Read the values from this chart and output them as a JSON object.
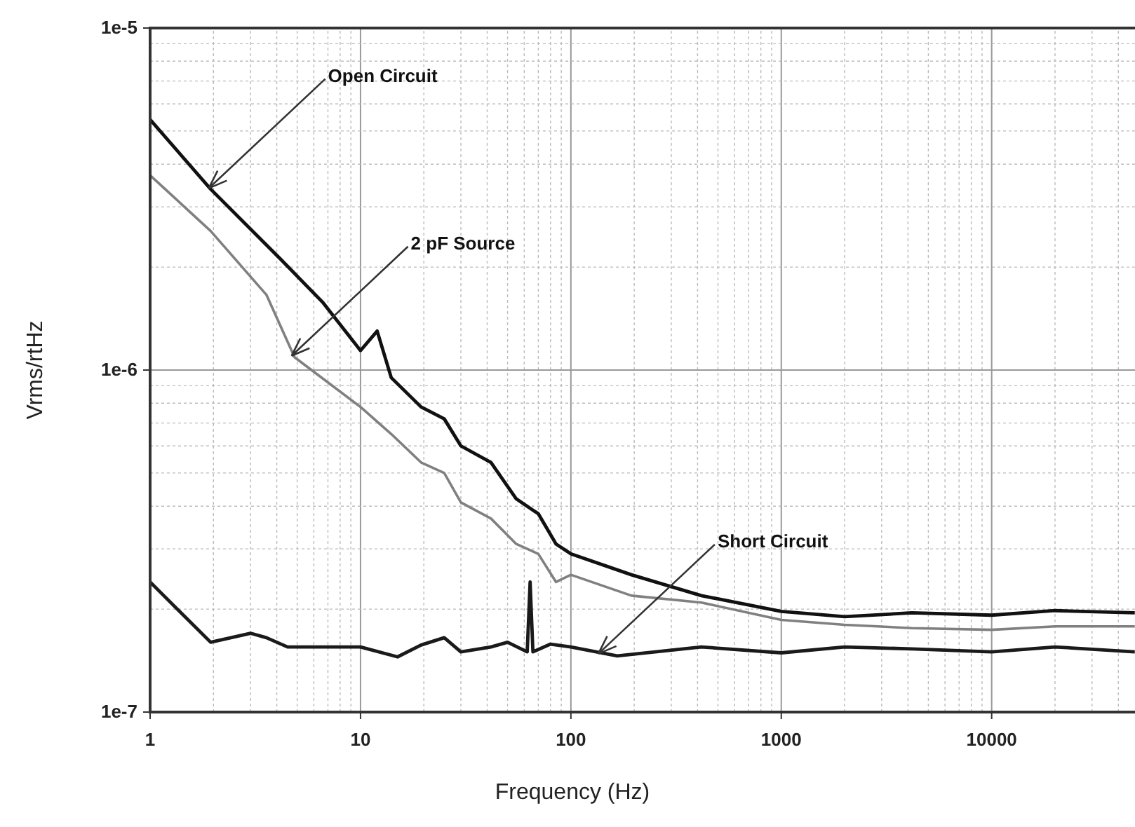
{
  "chart_data": {
    "type": "line",
    "xlabel": "Frequency (Hz)",
    "ylabel": "Vrms/rtHz",
    "log": "xy",
    "grid": true,
    "line_style": "solid",
    "xlim": [
      1,
      48000
    ],
    "xticks": [
      1,
      10,
      100,
      1000,
      10000
    ],
    "ylim": [
      1e-07,
      1e-05
    ],
    "yticks": [
      {
        "value": 1e-07,
        "label": "1e-7"
      },
      {
        "value": 1e-06,
        "label": "1e-6"
      },
      {
        "value": 1e-05,
        "label": "1e-5"
      }
    ],
    "series": [
      {
        "color": "#111111",
        "x": [
          1,
          1.94,
          4.17,
          6.6,
          10,
          12,
          14,
          19.4,
          25,
          30,
          41.7,
          55,
          70,
          85,
          100,
          194,
          417,
          1000,
          2000,
          4170,
          10000,
          20000,
          47900
        ],
        "values": [
          5.4e-06,
          3.38e-06,
          2.11e-06,
          1.58e-06,
          1.14e-06,
          1.3e-06,
          9.5e-07,
          7.8e-07,
          7.2e-07,
          6e-07,
          5.37e-07,
          4.2e-07,
          3.8e-07,
          3.1e-07,
          2.9e-07,
          2.52e-07,
          2.19e-07,
          1.97e-07,
          1.9e-07,
          1.95e-07,
          1.92e-07,
          1.98e-07,
          1.95e-07
        ]
      },
      {
        "color": "#808080",
        "x": [
          1,
          1.94,
          3.57,
          4.86,
          10,
          14,
          19.4,
          25,
          30,
          41.7,
          55,
          70,
          85,
          100,
          194,
          417,
          1000,
          2000,
          4170,
          10000,
          20000,
          47900
        ],
        "values": [
          3.71e-06,
          2.55e-06,
          1.66e-06,
          1.09e-06,
          7.8e-07,
          6.5e-07,
          5.37e-07,
          5e-07,
          4.1e-07,
          3.68e-07,
          3.1e-07,
          2.9e-07,
          2.4e-07,
          2.52e-07,
          2.19e-07,
          2.09e-07,
          1.86e-07,
          1.8e-07,
          1.76e-07,
          1.74e-07,
          1.78e-07,
          1.78e-07
        ]
      },
      {
        "color": "#1a1a1a",
        "x": [
          1,
          1.94,
          3.0,
          3.57,
          4.5,
          10,
          15,
          19.4,
          25,
          30,
          41.7,
          50,
          62,
          64,
          66,
          80,
          100,
          166,
          417,
          1000,
          2000,
          4170,
          10000,
          20000,
          47900
        ],
        "values": [
          2.4e-07,
          1.6e-07,
          1.7e-07,
          1.65e-07,
          1.55e-07,
          1.55e-07,
          1.45e-07,
          1.57e-07,
          1.65e-07,
          1.5e-07,
          1.55e-07,
          1.6e-07,
          1.5e-07,
          2.4e-07,
          1.5e-07,
          1.58e-07,
          1.55e-07,
          1.46e-07,
          1.55e-07,
          1.49e-07,
          1.55e-07,
          1.53e-07,
          1.5e-07,
          1.55e-07,
          1.5e-07
        ]
      }
    ],
    "annotations": [
      {
        "text": "Open Circuit",
        "x": 1.9,
        "y": 3.4e-06
      },
      {
        "text": "2 pF Source",
        "x": 4.7,
        "y": 1.1e-06
      },
      {
        "text": "Short Circuit",
        "x": 135,
        "y": 1.48e-07
      }
    ]
  }
}
